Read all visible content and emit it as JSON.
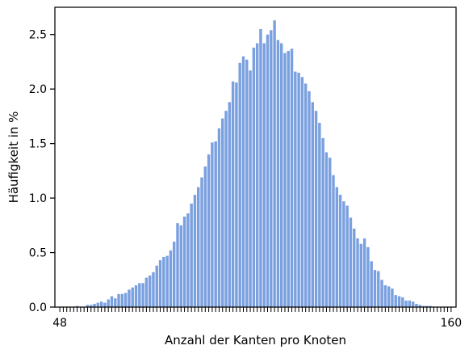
{
  "chart_data": {
    "type": "bar",
    "xlabel": "Anzahl der Kanten pro Knoten",
    "ylabel": "Häufigkeit in %",
    "ylim": [
      0,
      2.75
    ],
    "yticks": [
      0.0,
      0.5,
      1.0,
      1.5,
      2.0,
      2.5
    ],
    "ytick_labels": [
      "0.0",
      "0.5",
      "1.0",
      "1.5",
      "2.0",
      "2.5"
    ],
    "x_first_label": "48",
    "x_last_label": "160",
    "bar_color": "#7aa0e0",
    "grid": false,
    "values": [
      0,
      0,
      0,
      0,
      0,
      0.01,
      0,
      0,
      0.02,
      0.02,
      0.03,
      0.04,
      0.05,
      0.04,
      0.07,
      0.1,
      0.08,
      0.12,
      0.12,
      0.13,
      0.16,
      0.18,
      0.2,
      0.22,
      0.22,
      0.27,
      0.29,
      0.32,
      0.38,
      0.43,
      0.46,
      0.47,
      0.52,
      0.6,
      0.77,
      0.75,
      0.83,
      0.86,
      0.95,
      1.03,
      1.1,
      1.19,
      1.29,
      1.4,
      1.51,
      1.52,
      1.64,
      1.73,
      1.8,
      1.88,
      2.07,
      2.06,
      2.24,
      2.3,
      2.27,
      2.17,
      2.38,
      2.42,
      2.55,
      2.42,
      2.5,
      2.54,
      2.63,
      2.45,
      2.42,
      2.33,
      2.35,
      2.37,
      2.16,
      2.15,
      2.11,
      2.05,
      1.98,
      1.88,
      1.8,
      1.69,
      1.55,
      1.42,
      1.37,
      1.21,
      1.1,
      1.03,
      0.97,
      0.93,
      0.82,
      0.72,
      0.63,
      0.58,
      0.63,
      0.55,
      0.42,
      0.34,
      0.33,
      0.25,
      0.2,
      0.19,
      0.17,
      0.11,
      0.1,
      0.09,
      0.06,
      0.06,
      0.05,
      0.03,
      0.02,
      0.01,
      0.01,
      0.01,
      0,
      0,
      0,
      0,
      0,
      0
    ]
  }
}
